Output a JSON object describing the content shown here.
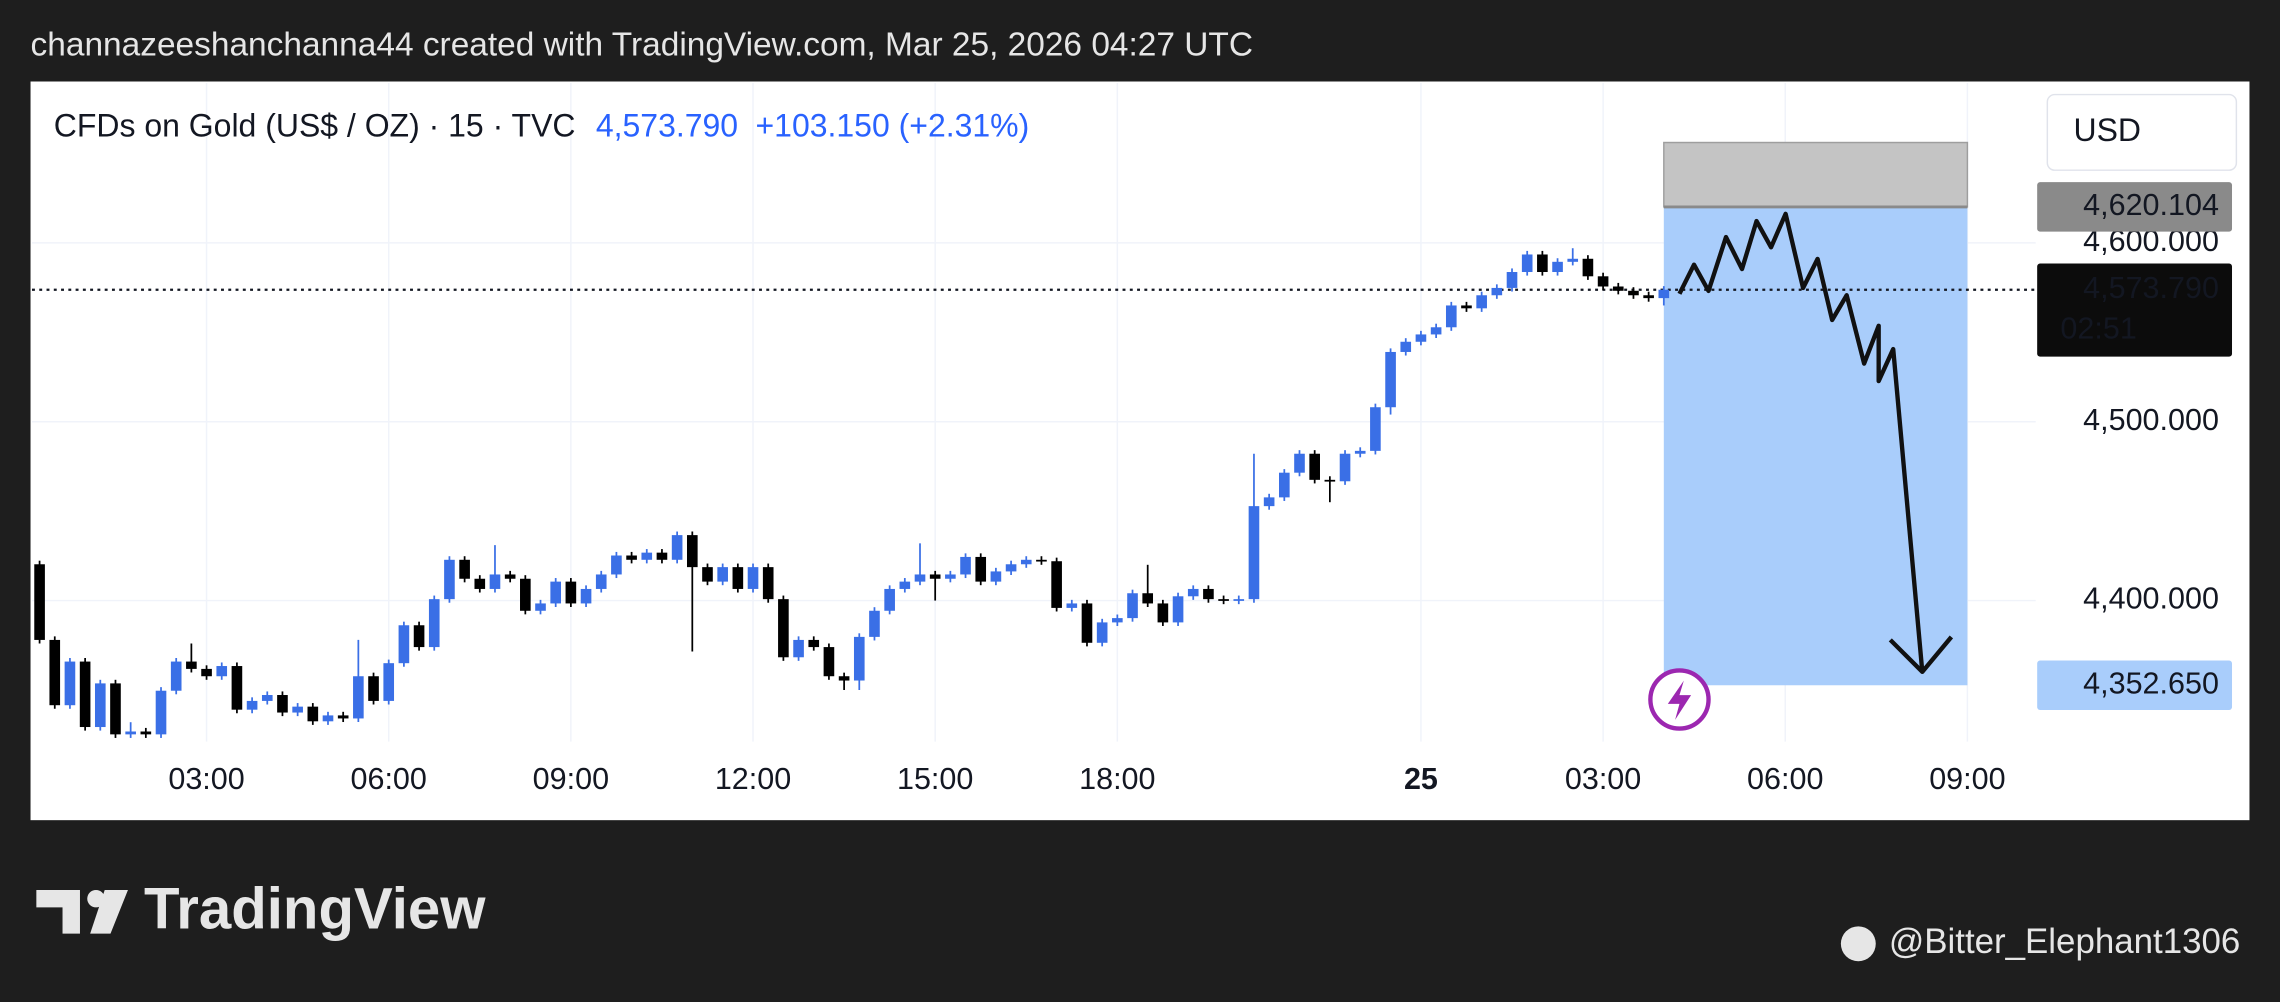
{
  "banner": "channazeeshanchanna44 created with TradingView.com, Mar 25, 2026 04:27 UTC",
  "brand": "TradingView",
  "watermark": "@Bitter_Elephant1306",
  "chart_data": {
    "type": "candlestick",
    "title": "CFDs on Gold (US$ / OZ) · 15 · TVC",
    "last_price": {
      "value": 4573.79,
      "label": "4,573.790"
    },
    "change": "+103.150 (+2.31%)",
    "countdown": "02:51",
    "currency": "USD",
    "up_color": "#3a6fe6",
    "down_color": "#000000",
    "grid": true,
    "xlim": [
      -0.5,
      131.5
    ],
    "xticks": [
      {
        "value": 11,
        "label": "03:00"
      },
      {
        "value": 23,
        "label": "06:00"
      },
      {
        "value": 35,
        "label": "09:00"
      },
      {
        "value": 47,
        "label": "12:00"
      },
      {
        "value": 59,
        "label": "15:00"
      },
      {
        "value": 71,
        "label": "18:00"
      },
      {
        "value": 91,
        "label": "25"
      },
      {
        "value": 103,
        "label": "03:00"
      },
      {
        "value": 115,
        "label": "06:00"
      },
      {
        "value": 127,
        "label": "09:00"
      }
    ],
    "ylim": [
      4319.5,
      4689.4
    ],
    "yticks": [
      {
        "value": 4400,
        "label": "4,400.000"
      },
      {
        "value": 4500,
        "label": "4,500.000"
      },
      {
        "value": 4600,
        "label": "4,600.000"
      }
    ],
    "position": {
      "x_range": [
        107,
        127
      ],
      "top": 4656.1,
      "entry": {
        "value": 4620.104,
        "label": "4,620.104"
      },
      "target": {
        "value": 4352.65,
        "label": "4,352.650"
      }
    },
    "open": [
      4420.3,
      4378.0,
      4341.5,
      4365.9,
      4329.3,
      4353.7,
      4325.2,
      4326.8,
      4325.2,
      4349.6,
      4365.9,
      4361.8,
      4357.7,
      4363.4,
      4339.0,
      4343.9,
      4347.2,
      4337.4,
      4340.7,
      4332.5,
      4335.8,
      4334.1,
      4357.7,
      4343.9,
      4365.0,
      4386.2,
      4374.0,
      4400.8,
      4422.8,
      4412.2,
      4406.5,
      4414.6,
      4412.2,
      4394.3,
      4398.4,
      4410.6,
      4398.4,
      4406.5,
      4414.6,
      4425.2,
      4422.8,
      4426.8,
      4422.8,
      4436.6,
      4418.7,
      4410.6,
      4418.7,
      4406.5,
      4418.7,
      4400.8,
      4368.3,
      4378.0,
      4374.0,
      4357.7,
      4355.3,
      4379.7,
      4394.3,
      4406.5,
      4410.6,
      4414.6,
      4412.2,
      4414.6,
      4424.4,
      4410.6,
      4416.3,
      4420.3,
      4422.8,
      4422.0,
      4395.9,
      4398.4,
      4376.4,
      4387.8,
      4390.2,
      4404.1,
      4398.4,
      4387.8,
      4402.4,
      4406.5,
      4400.8,
      4400.0,
      4400.8,
      4452.8,
      4457.7,
      4471.5,
      4482.1,
      4467.5,
      4466.7,
      4482.1,
      4483.7,
      4508.1,
      4539.0,
      4544.7,
      4548.8,
      4552.8,
      4565.0,
      4563.4,
      4570.7,
      4574.8,
      4583.7,
      4593.5,
      4583.7,
      4589.4,
      4591.1,
      4581.3,
      4575.6,
      4573.2,
      4570.7,
      4569.1
    ],
    "high": [
      4422.3,
      4380.0,
      4367.9,
      4367.9,
      4355.7,
      4355.7,
      4332.0,
      4328.8,
      4351.6,
      4367.9,
      4376.0,
      4363.8,
      4365.4,
      4365.4,
      4345.9,
      4349.2,
      4349.2,
      4342.7,
      4342.7,
      4337.8,
      4337.8,
      4378.0,
      4359.7,
      4367.0,
      4388.2,
      4388.2,
      4402.8,
      4424.8,
      4424.8,
      4414.2,
      4431.0,
      4416.6,
      4414.2,
      4400.4,
      4412.6,
      4412.6,
      4408.5,
      4416.6,
      4427.2,
      4427.2,
      4428.8,
      4428.8,
      4438.6,
      4438.6,
      4420.7,
      4420.7,
      4420.7,
      4420.7,
      4420.7,
      4402.8,
      4380.0,
      4380.0,
      4376.0,
      4359.7,
      4381.7,
      4396.3,
      4408.5,
      4412.6,
      4432.0,
      4416.6,
      4416.6,
      4426.4,
      4426.4,
      4418.3,
      4422.3,
      4424.8,
      4424.8,
      4424.0,
      4400.4,
      4400.4,
      4389.8,
      4392.2,
      4406.1,
      4420.0,
      4400.4,
      4404.4,
      4408.5,
      4408.5,
      4402.8,
      4402.8,
      4482.1,
      4459.7,
      4473.5,
      4484.1,
      4484.1,
      4469.5,
      4484.1,
      4485.7,
      4510.1,
      4541.0,
      4546.7,
      4550.8,
      4554.8,
      4567.0,
      4567.0,
      4572.7,
      4576.8,
      4585.7,
      4595.5,
      4595.5,
      4591.4,
      4597.0,
      4593.1,
      4583.3,
      4577.6,
      4575.2,
      4572.7,
      4575.8
    ],
    "low": [
      4376.0,
      4339.5,
      4339.5,
      4327.3,
      4327.3,
      4323.2,
      4323.2,
      4323.2,
      4323.2,
      4347.6,
      4359.8,
      4355.7,
      4355.7,
      4337.0,
      4337.0,
      4341.9,
      4335.4,
      4335.4,
      4330.5,
      4330.5,
      4332.1,
      4332.1,
      4341.9,
      4341.9,
      4363.0,
      4372.0,
      4372.0,
      4398.8,
      4410.2,
      4404.5,
      4404.5,
      4410.2,
      4392.3,
      4392.3,
      4396.4,
      4396.4,
      4396.4,
      4404.5,
      4412.6,
      4420.8,
      4420.8,
      4420.8,
      4420.8,
      4371.5,
      4408.6,
      4408.6,
      4404.5,
      4404.5,
      4398.8,
      4366.3,
      4366.3,
      4372.0,
      4355.7,
      4350.0,
      4350.0,
      4377.7,
      4392.3,
      4404.5,
      4408.6,
      4400.0,
      4410.2,
      4412.6,
      4408.6,
      4408.6,
      4414.3,
      4418.3,
      4420.0,
      4393.9,
      4393.9,
      4374.4,
      4374.4,
      4385.8,
      4388.2,
      4396.4,
      4385.8,
      4385.8,
      4400.4,
      4398.8,
      4398.0,
      4398.0,
      4398.8,
      4450.8,
      4455.7,
      4469.5,
      4465.5,
      4455.0,
      4464.7,
      4480.1,
      4481.7,
      4504.0,
      4537.0,
      4542.7,
      4546.8,
      4550.8,
      4561.4,
      4561.4,
      4568.7,
      4572.8,
      4581.7,
      4581.7,
      4581.7,
      4587.4,
      4579.3,
      4573.6,
      4571.2,
      4568.7,
      4567.1,
      4565.0
    ],
    "close": [
      4378.0,
      4341.5,
      4365.9,
      4329.3,
      4353.7,
      4325.2,
      4326.8,
      4325.2,
      4349.6,
      4365.9,
      4361.8,
      4357.7,
      4363.4,
      4339.0,
      4343.9,
      4347.2,
      4337.4,
      4340.7,
      4332.5,
      4335.8,
      4334.1,
      4357.7,
      4343.9,
      4365.0,
      4386.2,
      4374.0,
      4400.8,
      4422.8,
      4412.2,
      4406.5,
      4414.6,
      4412.2,
      4394.3,
      4398.4,
      4410.6,
      4398.4,
      4406.5,
      4414.6,
      4425.2,
      4422.8,
      4426.8,
      4422.8,
      4436.6,
      4418.7,
      4410.6,
      4418.7,
      4406.5,
      4418.7,
      4400.8,
      4368.3,
      4378.0,
      4374.0,
      4357.7,
      4355.3,
      4379.7,
      4394.3,
      4406.5,
      4410.6,
      4414.6,
      4412.2,
      4414.6,
      4424.4,
      4410.6,
      4416.3,
      4420.3,
      4422.8,
      4422.0,
      4395.9,
      4398.4,
      4376.4,
      4387.8,
      4390.2,
      4404.1,
      4398.4,
      4387.8,
      4402.4,
      4406.5,
      4400.8,
      4400.0,
      4400.8,
      4452.8,
      4457.7,
      4471.5,
      4482.1,
      4467.5,
      4466.7,
      4482.1,
      4483.7,
      4508.1,
      4539.0,
      4544.7,
      4548.8,
      4552.8,
      4565.0,
      4563.4,
      4570.7,
      4574.8,
      4583.7,
      4593.5,
      4583.7,
      4589.4,
      4591.1,
      4581.3,
      4575.6,
      4573.2,
      4570.7,
      4569.1,
      4573.79
    ]
  }
}
